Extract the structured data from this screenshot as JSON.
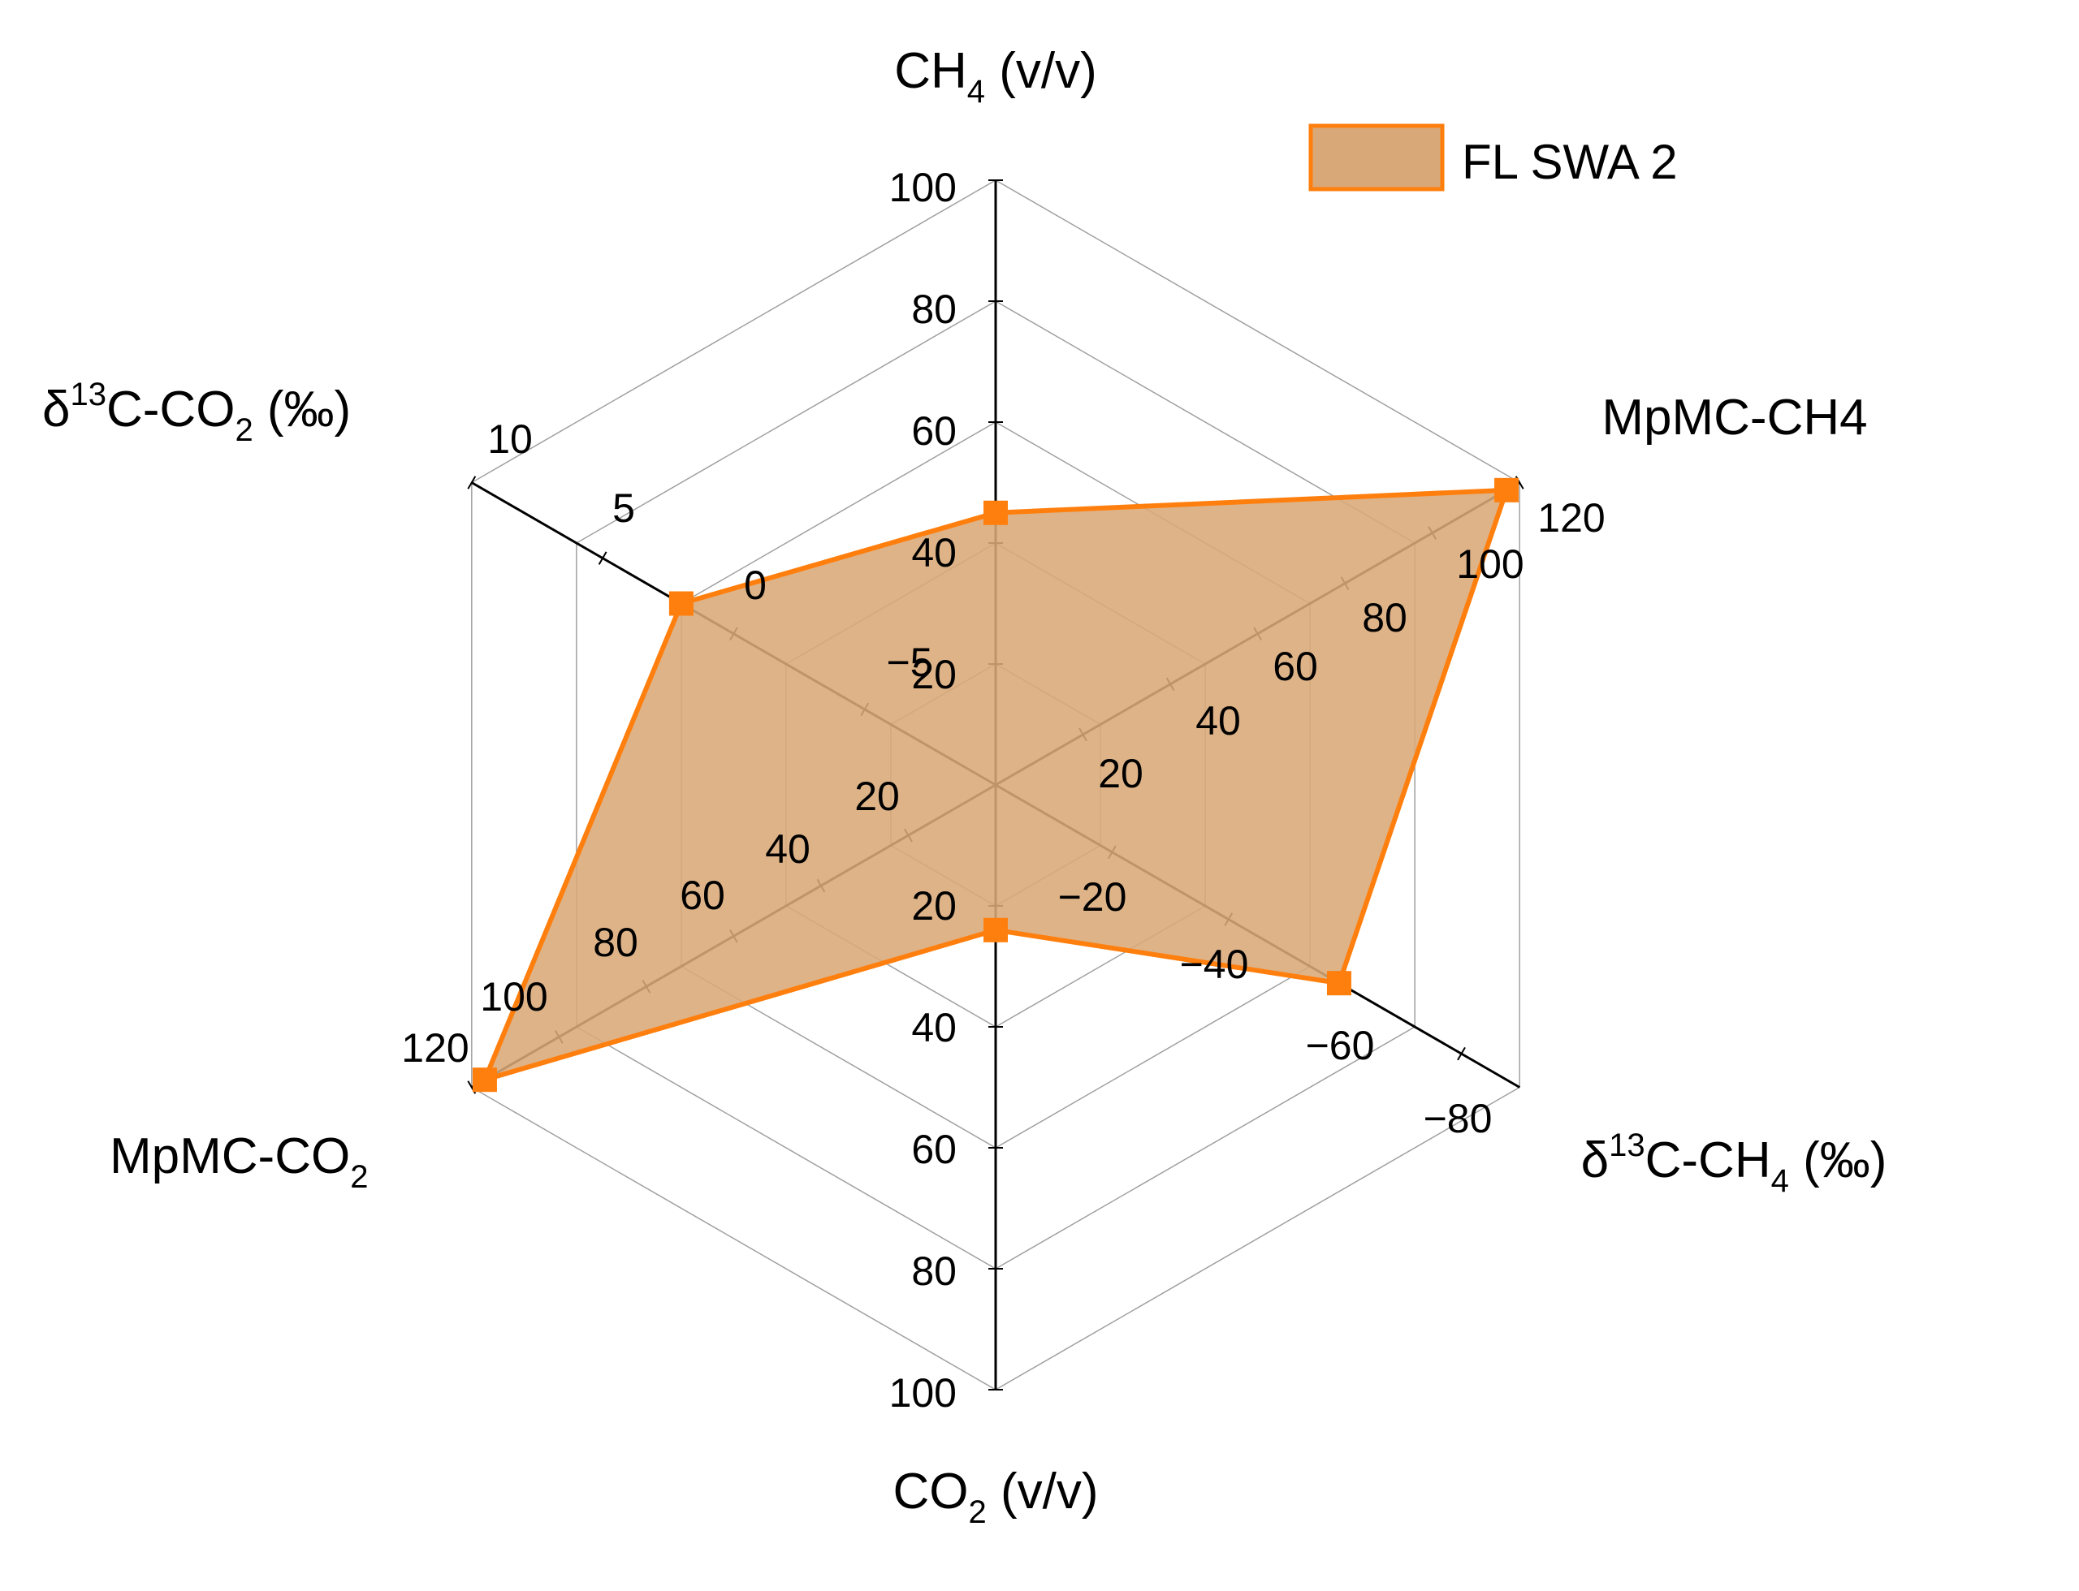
{
  "chart_data": {
    "type": "radar",
    "legend": {
      "position": "top-right"
    },
    "colors": {
      "fill": "#d9a878",
      "stroke": "#ff7f0e",
      "marker": "#ff7f0e",
      "grid": "#a0a0a0",
      "axis": "#000000"
    },
    "axes": [
      {
        "id": "ch4",
        "label_main": "CH",
        "label_sub": "4",
        "label_tail": " (v/v)",
        "label_pre": "",
        "label_sup": "",
        "min": 0,
        "max": 100,
        "ticks": [
          "20",
          "40",
          "60",
          "80",
          "100"
        ],
        "tick_values": [
          20,
          40,
          60,
          80,
          100
        ]
      },
      {
        "id": "mpmc-ch4",
        "label_pre": "",
        "label_sup": "",
        "label_main": "MpMC-CH4",
        "label_sub": "",
        "label_tail": "",
        "min": 0,
        "max": 120,
        "ticks": [
          "20",
          "40",
          "60",
          "80",
          "100",
          "120"
        ],
        "tick_values": [
          20,
          40,
          60,
          80,
          100,
          120
        ]
      },
      {
        "id": "d13c-ch4",
        "label_pre": "δ",
        "label_sup": "13",
        "label_main": "C-CH",
        "label_sub": "4",
        "label_tail": " (‰)",
        "min": 0,
        "max": -90,
        "ticks": [
          "−20",
          "−40",
          "−60",
          "−80"
        ],
        "tick_values": [
          -20,
          -40,
          -60,
          -80
        ]
      },
      {
        "id": "co2",
        "label_pre": "",
        "label_sup": "",
        "label_main": "CO",
        "label_sub": "2",
        "label_tail": " (v/v)",
        "min": 0,
        "max": 100,
        "ticks": [
          "20",
          "40",
          "60",
          "80",
          "100"
        ],
        "tick_values": [
          20,
          40,
          60,
          80,
          100
        ]
      },
      {
        "id": "mpmc-co2",
        "label_pre": "",
        "label_sup": "",
        "label_main": "MpMC-CO",
        "label_sub": "2",
        "label_tail": "",
        "min": 0,
        "max": 120,
        "ticks": [
          "20",
          "40",
          "60",
          "80",
          "100",
          "120"
        ],
        "tick_values": [
          20,
          40,
          60,
          80,
          100,
          120
        ]
      },
      {
        "id": "d13c-co2",
        "label_pre": "δ",
        "label_sup": "13",
        "label_main": "C-CO",
        "label_sub": "2",
        "label_tail": " (‰)",
        "min": -10,
        "max": 10,
        "ticks": [
          "−5",
          "0",
          "5",
          "10"
        ],
        "tick_values": [
          -5,
          0,
          5,
          10
        ]
      }
    ],
    "series": [
      {
        "name": "FL SWA 2",
        "values": [
          45,
          117,
          -59,
          24,
          117,
          2
        ]
      }
    ]
  }
}
